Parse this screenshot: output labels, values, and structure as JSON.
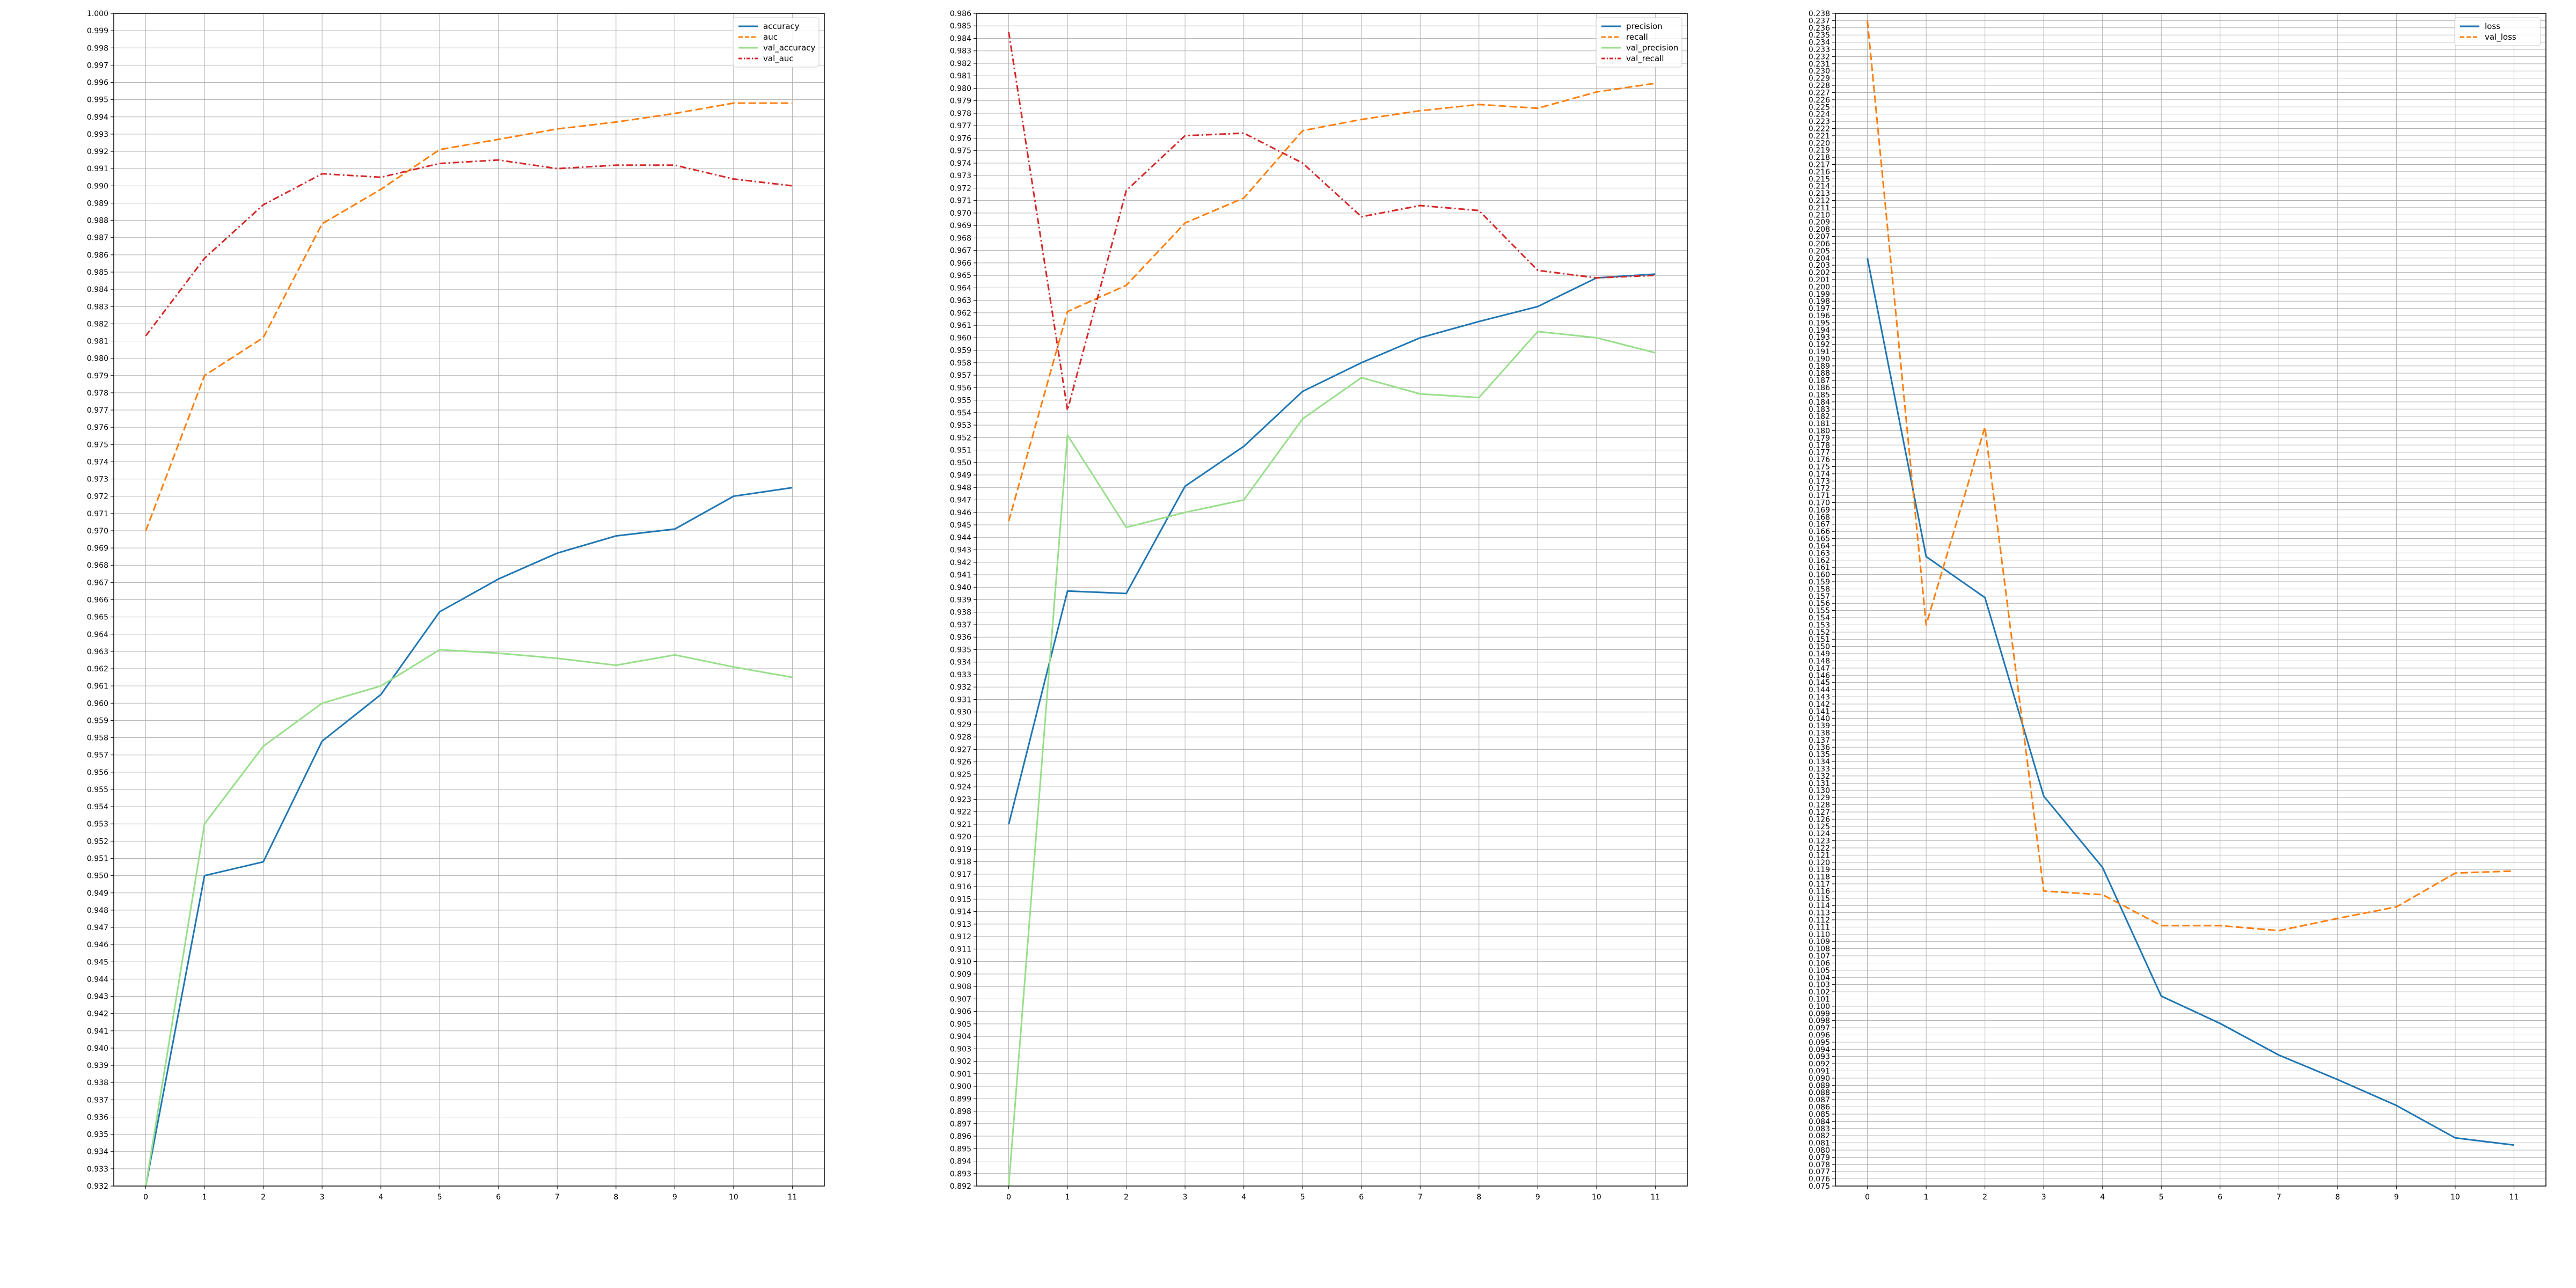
{
  "chart_data": [
    {
      "type": "line",
      "x": [
        0,
        1,
        2,
        3,
        4,
        5,
        6,
        7,
        8,
        9,
        10,
        11
      ],
      "ylim": [
        0.932,
        1.0
      ],
      "ytick_step": 0.001,
      "ytick_decimals": 3,
      "grid": true,
      "legend_position": "top-right",
      "series": [
        {
          "name": "accuracy",
          "color": "#1f77b4",
          "style": "solid",
          "values": [
            0.932,
            0.95,
            0.9508,
            0.9578,
            0.9605,
            0.9653,
            0.9672,
            0.9687,
            0.9697,
            0.9701,
            0.972,
            0.9725
          ]
        },
        {
          "name": "auc",
          "color": "#ff7f0e",
          "style": "dashed",
          "values": [
            0.97,
            0.979,
            0.9812,
            0.9878,
            0.9898,
            0.9921,
            0.9927,
            0.9933,
            0.9937,
            0.9942,
            0.9948,
            0.9948
          ]
        },
        {
          "name": "val_accuracy",
          "color": "#98df8a",
          "style": "solid",
          "values": [
            0.932,
            0.953,
            0.9575,
            0.96,
            0.961,
            0.9631,
            0.9629,
            0.9626,
            0.9622,
            0.9628,
            0.9621,
            0.9615
          ]
        },
        {
          "name": "val_auc",
          "color": "#d62728",
          "style": "dashdot",
          "values": [
            0.9813,
            0.9858,
            0.9889,
            0.9907,
            0.9905,
            0.9913,
            0.9915,
            0.991,
            0.9912,
            0.9912,
            0.9904,
            0.99
          ]
        }
      ]
    },
    {
      "type": "line",
      "x": [
        0,
        1,
        2,
        3,
        4,
        5,
        6,
        7,
        8,
        9,
        10,
        11
      ],
      "ylim": [
        0.892,
        0.986
      ],
      "ytick_step": 0.001,
      "ytick_decimals": 3,
      "grid": true,
      "legend_position": "top-right",
      "series": [
        {
          "name": "precision",
          "color": "#1f77b4",
          "style": "solid",
          "values": [
            0.921,
            0.9397,
            0.9395,
            0.9481,
            0.9513,
            0.9557,
            0.958,
            0.96,
            0.9613,
            0.9625,
            0.9648,
            0.9651
          ]
        },
        {
          "name": "recall",
          "color": "#ff7f0e",
          "style": "dashed",
          "values": [
            0.9453,
            0.9621,
            0.9642,
            0.9692,
            0.9712,
            0.9766,
            0.9775,
            0.9782,
            0.9787,
            0.9784,
            0.9797,
            0.9804
          ]
        },
        {
          "name": "val_precision",
          "color": "#98df8a",
          "style": "solid",
          "values": [
            0.892,
            0.9522,
            0.9448,
            0.946,
            0.947,
            0.9535,
            0.9568,
            0.9555,
            0.9552,
            0.9605,
            0.96,
            0.9588
          ]
        },
        {
          "name": "val_recall",
          "color": "#d62728",
          "style": "dashdot",
          "values": [
            0.9845,
            0.9542,
            0.9718,
            0.9762,
            0.9764,
            0.974,
            0.9697,
            0.9706,
            0.9702,
            0.9654,
            0.9648,
            0.965
          ]
        }
      ]
    },
    {
      "type": "line",
      "x": [
        0,
        1,
        2,
        3,
        4,
        5,
        6,
        7,
        8,
        9,
        10,
        11
      ],
      "ylim": [
        0.075,
        0.238
      ],
      "ytick_step": 0.001,
      "ytick_decimals": 3,
      "grid": true,
      "legend_position": "top-right",
      "series": [
        {
          "name": "loss",
          "color": "#1f77b4",
          "style": "solid",
          "values": [
            0.204,
            0.1625,
            0.1568,
            0.1292,
            0.1193,
            0.1014,
            0.0976,
            0.0932,
            0.0898,
            0.0862,
            0.0817,
            0.0807
          ]
        },
        {
          "name": "val_loss",
          "color": "#ff7f0e",
          "style": "dashed",
          "values": [
            0.237,
            0.153,
            0.1805,
            0.116,
            0.1155,
            0.1112,
            0.1112,
            0.1105,
            0.1122,
            0.1138,
            0.1185,
            0.1188
          ]
        }
      ]
    }
  ]
}
